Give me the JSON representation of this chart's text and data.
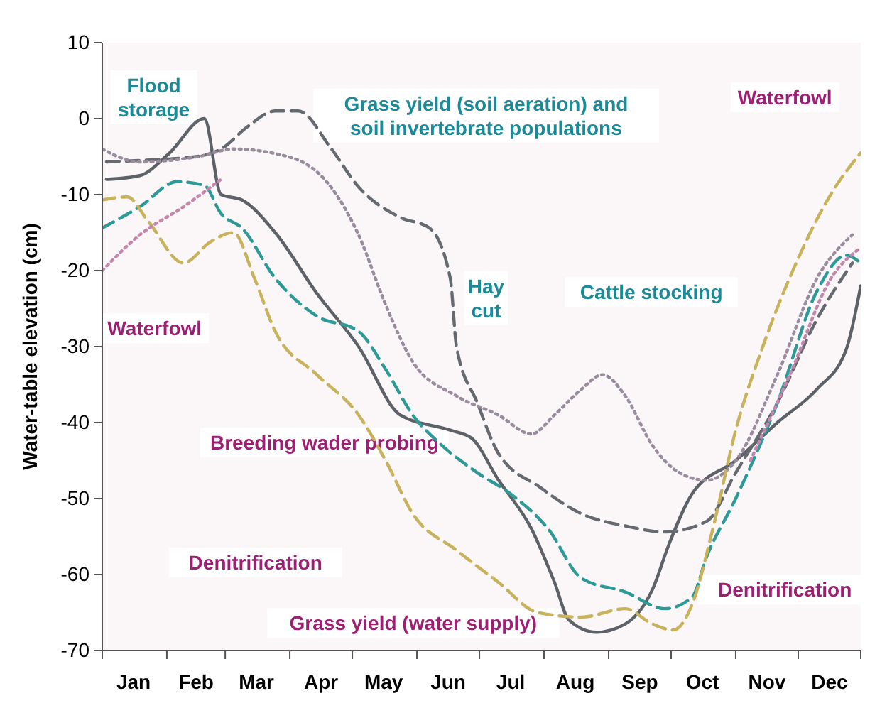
{
  "chart_data": {
    "type": "line",
    "ylabel": "Water-table elevation (cm)",
    "xlim": [
      "--01-01",
      "--12-31"
    ],
    "ylim": [
      -70,
      10
    ],
    "yticks": [
      10,
      0,
      -10,
      -20,
      -30,
      -40,
      -50,
      -60,
      -70
    ],
    "xticks": [
      {
        "value": "--01-01",
        "label": null
      },
      {
        "value": "--01-16",
        "label": "Jan"
      },
      {
        "value": "--02-01",
        "label": null
      },
      {
        "value": "--02-15",
        "label": "Feb"
      },
      {
        "value": "--03-01",
        "label": null
      },
      {
        "value": "--03-16",
        "label": "Mar"
      },
      {
        "value": "--04-01",
        "label": null
      },
      {
        "value": "--04-16",
        "label": "Apr"
      },
      {
        "value": "--05-01",
        "label": null
      },
      {
        "value": "--05-16",
        "label": "May"
      },
      {
        "value": "--06-01",
        "label": null
      },
      {
        "value": "--06-16",
        "label": "Jun"
      },
      {
        "value": "--07-01",
        "label": null
      },
      {
        "value": "--07-16",
        "label": "Jul"
      },
      {
        "value": "--08-01",
        "label": null
      },
      {
        "value": "--08-16",
        "label": "Aug"
      },
      {
        "value": "--09-01",
        "label": null
      },
      {
        "value": "--09-16",
        "label": "Sep"
      },
      {
        "value": "--10-01",
        "label": null
      },
      {
        "value": "--10-16",
        "label": "Oct"
      },
      {
        "value": "--11-01",
        "label": null
      },
      {
        "value": "--11-16",
        "label": "Nov"
      },
      {
        "value": "--12-01",
        "label": null
      },
      {
        "value": "--12-16",
        "label": "Dec"
      },
      {
        "value": "--12-31",
        "label": null
      }
    ],
    "grid": false,
    "marker": "none",
    "series": [
      {
        "color": "#5c6268",
        "line_style": "solid",
        "x": [
          "--01-03",
          "--01-19",
          "--02-02",
          "--02-19",
          "--02-27",
          "--03-09",
          "--03-25",
          "--04-14",
          "--05-04",
          "--05-24",
          "--06-17",
          "--06-27",
          "--07-10",
          "--07-26",
          "--08-06",
          "--08-13",
          "--08-26",
          "--09-09",
          "--09-22",
          "--09-30",
          "--10-11",
          "--11-01",
          "--11-21",
          "--12-10",
          "--12-24",
          "--12-31"
        ],
        "values": [
          -8,
          -7.5,
          -4.6,
          0,
          -10,
          -10.7,
          -15,
          -23,
          -30,
          -39,
          -41,
          -42,
          -47.5,
          -54,
          -61,
          -66,
          -67.6,
          -66.5,
          -62,
          -56,
          -49.4,
          -45,
          -40,
          -35.6,
          -30.4,
          -22
        ]
      },
      {
        "color": "#656a70",
        "line_style": "dashed",
        "x": [
          "--01-03",
          "--01-19",
          "--02-15",
          "--02-27",
          "--03-12",
          "--03-25",
          "--04-05",
          "--04-21",
          "--05-04",
          "--05-24",
          "--06-07",
          "--06-17",
          "--06-20",
          "--06-30",
          "--07-10",
          "--07-30",
          "--08-19",
          "--09-09",
          "--09-28",
          "--10-18",
          "--11-01",
          "--11-21",
          "--12-10",
          "--12-27"
        ],
        "values": [
          -5.7,
          -5.5,
          -5,
          -4,
          -1,
          1,
          1,
          -4,
          -9,
          -13,
          -14.4,
          -21,
          -30,
          -37.4,
          -44,
          -48.5,
          -52,
          -53.6,
          -54.4,
          -53,
          -46.6,
          -37.4,
          -26.4,
          -19
        ]
      },
      {
        "color": "#9a8c9e",
        "line_style": "dotted",
        "x": [
          "--01-01",
          "--01-19",
          "--02-16",
          "--03-05",
          "--03-25",
          "--04-14",
          "--05-04",
          "--05-17",
          "--05-30",
          "--06-20",
          "--07-10",
          "--07-26",
          "--08-06",
          "--08-19",
          "--08-29",
          "--09-09",
          "--09-22",
          "--10-05",
          "--10-18",
          "--11-01",
          "--11-21",
          "--12-10",
          "--12-27"
        ],
        "values": [
          -4,
          -5.7,
          -5,
          -4,
          -4.6,
          -7,
          -15.3,
          -24.5,
          -32,
          -36.5,
          -39,
          -41.5,
          -39,
          -35.6,
          -33.7,
          -36.5,
          -43,
          -46.6,
          -47.6,
          -45,
          -33.7,
          -21,
          -15.3
        ]
      },
      {
        "color": "#2e9a98",
        "line_style": "dashed",
        "x": [
          "--01-01",
          "--01-19",
          "--02-06",
          "--02-19",
          "--02-27",
          "--03-09",
          "--03-25",
          "--04-14",
          "--05-04",
          "--05-17",
          "--05-30",
          "--06-13",
          "--06-30",
          "--07-16",
          "--08-03",
          "--08-19",
          "--09-09",
          "--09-28",
          "--10-11",
          "--10-18",
          "--11-01",
          "--11-21",
          "--12-10",
          "--12-24",
          "--12-31"
        ],
        "values": [
          -14.4,
          -11.6,
          -8.3,
          -8.8,
          -12.5,
          -14.4,
          -21,
          -26,
          -28,
          -33,
          -39,
          -43,
          -46.6,
          -49.4,
          -54,
          -60.5,
          -62.3,
          -64.5,
          -63,
          -57.7,
          -50,
          -37.4,
          -22.7,
          -18,
          -19
        ]
      },
      {
        "color": "#c9b25c",
        "line_style": "dashed",
        "x": [
          "--01-01",
          "--01-13",
          "--01-23",
          "--02-09",
          "--02-22",
          "--03-05",
          "--03-15",
          "--03-25",
          "--04-14",
          "--05-04",
          "--05-17",
          "--05-30",
          "--06-20",
          "--07-10",
          "--07-29",
          "--08-19",
          "--09-09",
          "--09-22",
          "--10-02",
          "--10-11",
          "--10-21",
          "--11-01",
          "--11-14",
          "--11-30",
          "--12-17",
          "--12-31"
        ],
        "values": [
          -10.7,
          -10.3,
          -13.5,
          -19,
          -16.2,
          -15,
          -21,
          -28,
          -33.7,
          -39,
          -45,
          -52,
          -56.8,
          -61,
          -65,
          -65.6,
          -64.5,
          -66.5,
          -67.3,
          -64,
          -54,
          -41,
          -30,
          -19,
          -9.8,
          -4.5
        ]
      },
      {
        "color": "#c585ad",
        "line_style": "dotted",
        "x": [
          "--01-01",
          "--01-19",
          "--02-09",
          "--02-27",
          null,
          "--11-08",
          "--11-27",
          "--12-17",
          "--12-31"
        ],
        "values": [
          -20,
          -15.3,
          -11.6,
          -8,
          null,
          -45,
          -33.7,
          -20.9,
          -17
        ]
      }
    ],
    "annotations": [
      "Flood\nstorage",
      "Grass yield (soil aeration) and\nsoil invertebrate populations",
      "Hay\ncut",
      "Cattle stocking",
      "Waterfowl",
      "Waterfowl",
      "Breeding wader probing",
      "Denitrification",
      "Grass yield (water supply)",
      "Denitrification"
    ]
  }
}
